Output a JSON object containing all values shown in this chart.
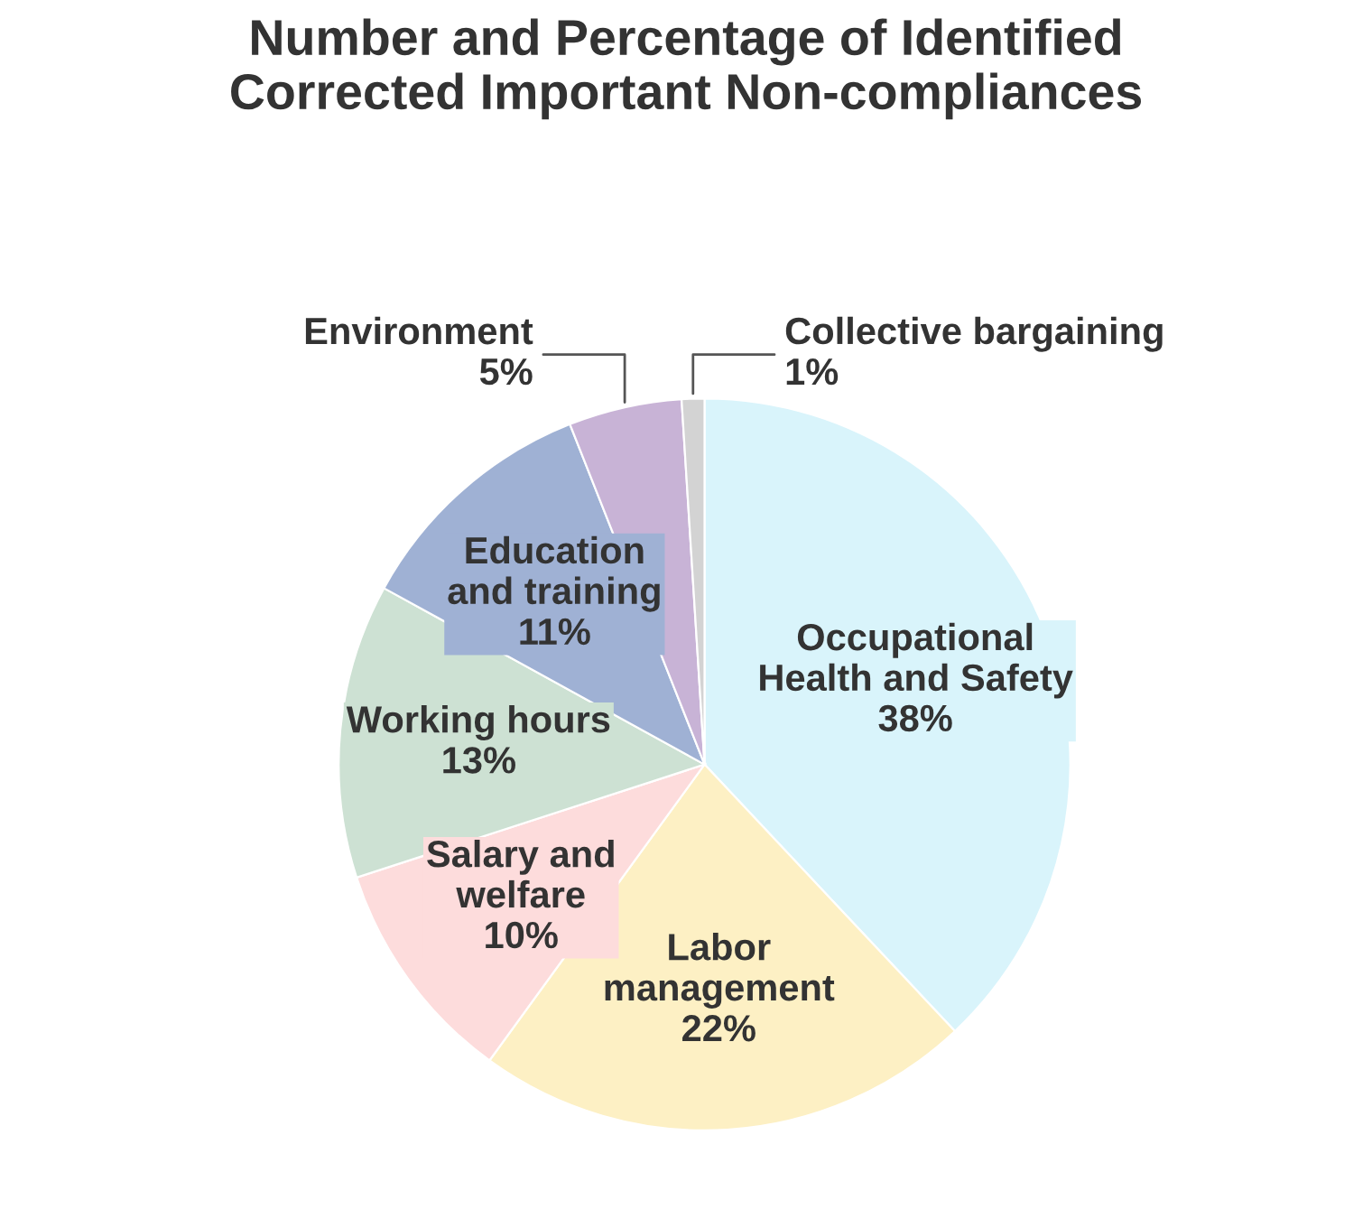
{
  "chart_data": {
    "type": "pie",
    "title": "Number and Percentage of Identified\nCorrected Important Non-compliances",
    "categories": [
      "Occupational\nHealth and Safety",
      "Labor\nmanagement",
      "Salary and\nwelfare",
      "Working hours",
      "Education\nand training",
      "Environment",
      "Collective bargaining"
    ],
    "values": [
      38,
      22,
      10,
      13,
      11,
      5,
      1
    ],
    "value_labels": [
      "38%",
      "22%",
      "10%",
      "13%",
      "11%",
      "5%",
      "1%"
    ],
    "colors": [
      "#d9f4fb",
      "#fdf0c4",
      "#fddcdc",
      "#cde1d3",
      "#9fb1d4",
      "#c8b3d6",
      "#d3d3d3"
    ]
  }
}
